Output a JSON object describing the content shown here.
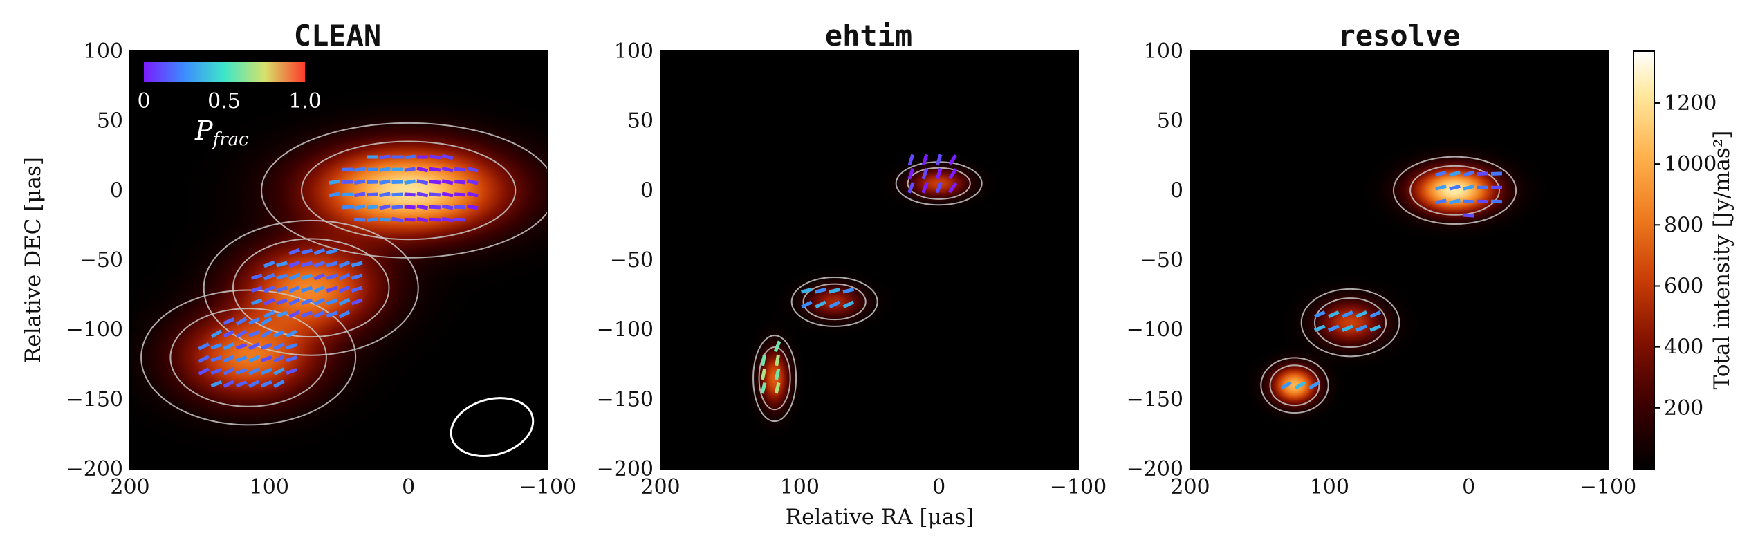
{
  "chart_data": [
    {
      "type": "heatmap",
      "title": "CLEAN",
      "xlabel": "",
      "ylabel": "Relative DEC [μas]",
      "xlim": [
        200,
        -100
      ],
      "ylim": [
        -200,
        100
      ],
      "xticks": [
        200,
        100,
        0,
        -100
      ],
      "yticks": [
        100,
        50,
        0,
        -50,
        -100,
        -150,
        -200
      ],
      "xtick_labels": [
        "200",
        "100",
        "0",
        "−100"
      ],
      "ytick_labels": [
        "100",
        "50",
        "0",
        "−50",
        "−100",
        "−150",
        "−200"
      ],
      "intensity_components": [
        {
          "ra": 0,
          "dec": 0,
          "sigma_ra": 48,
          "sigma_dec": 22,
          "peak": 1150
        },
        {
          "ra": 70,
          "dec": -70,
          "sigma_ra": 35,
          "sigma_dec": 22,
          "peak": 800
        },
        {
          "ra": 115,
          "dec": -120,
          "sigma_ra": 35,
          "sigma_dec": 22,
          "peak": 750
        }
      ],
      "beam": {
        "ra": -60,
        "dec": -170,
        "major": 30,
        "minor": 20,
        "angle_deg": -15
      },
      "pfrac_legend": {
        "label": "P_frac",
        "ticks": [
          "0",
          "0.5",
          "1.0"
        ]
      },
      "evpa_regions": [
        {
          "ra": 0,
          "dec": 0,
          "sigma_ra": 55,
          "sigma_dec": 30,
          "step": 9,
          "angle_deg": 5,
          "pfrac": 0.22
        },
        {
          "ra": 70,
          "dec": -70,
          "sigma_ra": 42,
          "sigma_dec": 28,
          "step": 9,
          "angle_deg": 20,
          "pfrac": 0.2
        },
        {
          "ra": 115,
          "dec": -120,
          "sigma_ra": 40,
          "sigma_dec": 28,
          "step": 9,
          "angle_deg": 25,
          "pfrac": 0.2
        }
      ]
    },
    {
      "type": "heatmap",
      "title": "ehtim",
      "xlabel": "Relative RA [μas]",
      "ylabel": "",
      "xlim": [
        200,
        -100
      ],
      "ylim": [
        -200,
        100
      ],
      "xticks": [
        200,
        100,
        0,
        -100
      ],
      "yticks": [
        100,
        50,
        0,
        -50,
        -100,
        -150,
        -200
      ],
      "xtick_labels": [
        "200",
        "100",
        "0",
        "−100"
      ],
      "ytick_labels": [
        "100",
        "50",
        "0",
        "−50",
        "−100",
        "−150",
        "−200"
      ],
      "intensity_components": [
        {
          "ra": 0,
          "dec": 5,
          "sigma_ra": 14,
          "sigma_dec": 7,
          "peak": 600
        },
        {
          "ra": 75,
          "dec": -80,
          "sigma_ra": 14,
          "sigma_dec": 8,
          "peak": 500
        },
        {
          "ra": 118,
          "dec": -135,
          "sigma_ra": 7,
          "sigma_dec": 14,
          "peak": 700
        }
      ],
      "evpa_regions": [
        {
          "ra": 5,
          "dec": 10,
          "sigma_ra": 25,
          "sigma_dec": 18,
          "step": 10,
          "angle_deg": 70,
          "pfrac": 0.1
        },
        {
          "ra": 80,
          "dec": -80,
          "sigma_ra": 25,
          "sigma_dec": 12,
          "step": 10,
          "angle_deg": 20,
          "pfrac": 0.3
        },
        {
          "ra": 118,
          "dec": -130,
          "sigma_ra": 12,
          "sigma_dec": 22,
          "step": 10,
          "angle_deg": 75,
          "pfrac": 0.6
        }
      ]
    },
    {
      "type": "heatmap",
      "title": "resolve",
      "xlabel": "",
      "ylabel": "",
      "xlim": [
        200,
        -100
      ],
      "ylim": [
        -200,
        100
      ],
      "xticks": [
        200,
        100,
        0,
        -100
      ],
      "yticks": [
        100,
        50,
        0,
        -50,
        -100,
        -150,
        -200
      ],
      "xtick_labels": [
        "200",
        "100",
        "0",
        "−100"
      ],
      "ytick_labels": [
        "100",
        "50",
        "0",
        "−50",
        "−100",
        "−150",
        "−200"
      ],
      "intensity_components": [
        {
          "ra": 10,
          "dec": 0,
          "sigma_ra": 20,
          "sigma_dec": 11,
          "peak": 1200
        },
        {
          "ra": 85,
          "dec": -95,
          "sigma_ra": 16,
          "sigma_dec": 11,
          "peak": 600
        },
        {
          "ra": 125,
          "dec": -140,
          "sigma_ra": 11,
          "sigma_dec": 9,
          "peak": 1000
        }
      ],
      "evpa_regions": [
        {
          "ra": 0,
          "dec": 0,
          "sigma_ra": 30,
          "sigma_dec": 18,
          "step": 10,
          "angle_deg": 15,
          "pfrac": 0.3
        },
        {
          "ra": 85,
          "dec": -95,
          "sigma_ra": 28,
          "sigma_dec": 14,
          "step": 10,
          "angle_deg": 25,
          "pfrac": 0.3
        },
        {
          "ra": 125,
          "dec": -140,
          "sigma_ra": 14,
          "sigma_dec": 10,
          "step": 10,
          "angle_deg": 30,
          "pfrac": 0.35
        }
      ]
    }
  ],
  "colorbar": {
    "label": "Total intensity [Jy/mas²]",
    "range": [
      0,
      1370
    ],
    "ticks": [
      200,
      400,
      600,
      800,
      1000,
      1200
    ],
    "tick_labels": [
      "200",
      "400",
      "600",
      "800",
      "1000",
      "1200"
    ]
  },
  "colors": {
    "pfrac_cmap": [
      "#7a1cff",
      "#3c8cff",
      "#3ee6c8",
      "#d6e26a",
      "#ff3a2a"
    ],
    "contour": "#c8c8c8",
    "beam": "#ffffff"
  }
}
